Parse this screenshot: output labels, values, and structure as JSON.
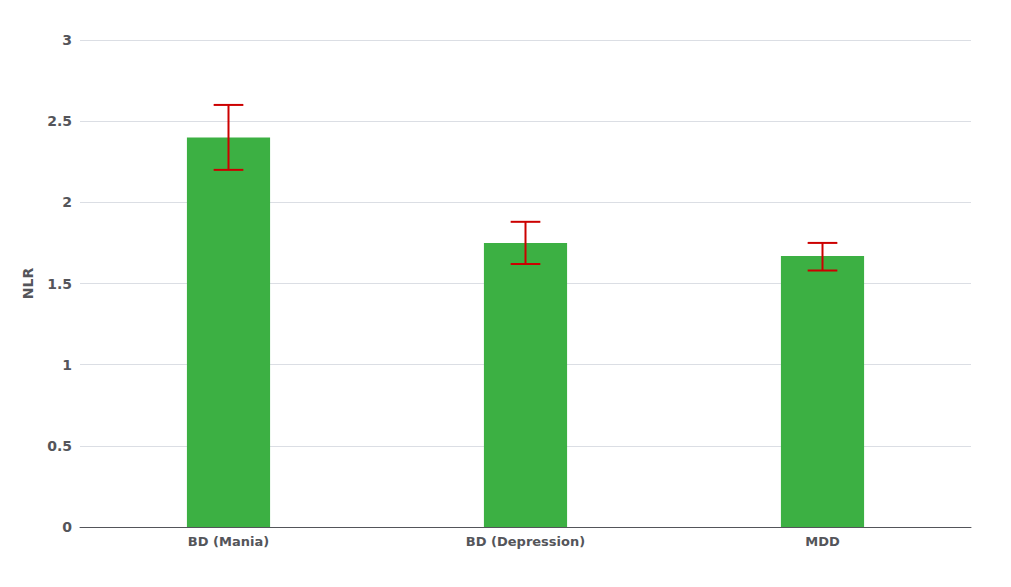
{
  "chart_data": {
    "type": "bar",
    "categories": [
      "BD (Mania)",
      "BD (Depression)",
      "MDD"
    ],
    "values": [
      2.4,
      1.75,
      1.67
    ],
    "error_bars": {
      "upper": [
        0.2,
        0.13,
        0.08
      ],
      "lower": [
        0.2,
        0.13,
        0.09
      ],
      "color": "#cc0000"
    },
    "color": "#3cb043",
    "ylabel": "NLR",
    "ylim": [
      0,
      3
    ],
    "yticks": [
      0,
      0.5,
      1,
      1.5,
      2,
      2.5,
      3
    ],
    "grid": true
  }
}
